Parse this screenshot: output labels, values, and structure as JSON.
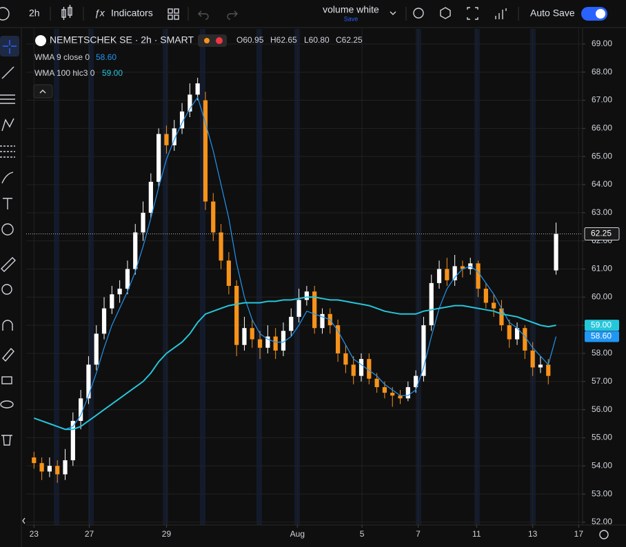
{
  "toolbar": {
    "interval": "2h",
    "indicators": "Indicators",
    "layout_name": "volume white",
    "layout_status": "Save",
    "auto_save": "Auto Save"
  },
  "chart_data": {
    "type": "candlestick",
    "title": "NEMETSCHEK SE · 2h · SMART",
    "ohlc_labels": [
      "O60.95",
      "H62.65",
      "L60.80",
      "C62.25"
    ],
    "open": [
      54.3,
      54.1,
      53.8,
      54.0,
      53.7,
      54.2,
      55.6,
      56.4,
      57.6,
      58.7,
      59.6,
      60.1,
      60.3,
      61.0,
      62.3,
      63.0,
      64.1,
      65.8,
      65.4,
      66.0,
      66.6,
      67.2,
      67.0,
      63.4,
      62.3,
      61.3,
      60.4,
      58.3,
      58.9,
      58.5,
      58.2,
      58.6,
      58.1,
      58.8,
      59.3,
      59.9,
      60.2,
      58.9,
      59.4,
      59.0,
      58.0,
      57.6,
      57.2,
      57.8,
      57.1,
      56.8,
      56.6,
      56.5,
      56.4,
      56.8,
      57.2,
      59.0,
      60.5,
      61.0,
      60.6,
      61.1,
      61.0,
      61.2,
      60.3,
      59.8,
      59.6,
      59.0,
      58.5,
      58.9,
      58.1,
      57.5,
      57.6,
      60.95
    ],
    "high": [
      54.5,
      54.3,
      54.3,
      54.2,
      54.6,
      55.9,
      56.7,
      57.9,
      59.0,
      60.0,
      60.4,
      60.6,
      61.3,
      62.6,
      63.4,
      64.4,
      66.0,
      66.1,
      66.3,
      66.9,
      67.6,
      67.8,
      67.3,
      63.7,
      62.6,
      61.6,
      60.6,
      59.3,
      59.2,
      58.8,
      59.0,
      58.9,
      59.1,
      59.6,
      60.3,
      60.4,
      60.4,
      59.6,
      59.6,
      59.2,
      58.3,
      57.9,
      58.0,
      58.0,
      57.3,
      57.0,
      56.8,
      56.7,
      57.0,
      57.4,
      59.3,
      60.8,
      61.3,
      61.4,
      61.5,
      61.3,
      61.4,
      61.3,
      60.5,
      60.1,
      59.9,
      59.2,
      59.1,
      59.0,
      58.4,
      57.9,
      57.8,
      62.65
    ],
    "low": [
      53.9,
      53.5,
      53.6,
      53.4,
      53.5,
      54.0,
      55.3,
      56.2,
      57.4,
      58.5,
      59.4,
      59.8,
      60.1,
      60.8,
      62.0,
      62.8,
      63.9,
      65.1,
      65.2,
      65.8,
      66.4,
      67.0,
      63.1,
      62.0,
      61.0,
      60.1,
      57.9,
      58.1,
      58.2,
      57.8,
      58.0,
      57.8,
      57.9,
      58.6,
      59.1,
      59.7,
      58.7,
      58.7,
      58.7,
      57.7,
      57.3,
      56.9,
      57.0,
      56.9,
      56.6,
      56.4,
      56.1,
      56.2,
      56.3,
      56.6,
      57.0,
      58.8,
      60.3,
      60.4,
      60.4,
      60.7,
      60.8,
      60.0,
      59.6,
      59.3,
      58.8,
      58.2,
      58.3,
      57.8,
      57.2,
      57.3,
      56.9,
      60.8
    ],
    "close": [
      54.1,
      53.8,
      54.0,
      53.7,
      54.2,
      55.6,
      56.4,
      57.6,
      58.7,
      59.6,
      60.1,
      60.3,
      61.0,
      62.3,
      63.0,
      64.1,
      65.8,
      65.4,
      66.0,
      66.6,
      67.2,
      67.6,
      63.4,
      62.3,
      61.3,
      60.4,
      58.3,
      58.9,
      58.5,
      58.2,
      58.6,
      58.1,
      58.8,
      59.3,
      59.9,
      60.2,
      58.9,
      59.4,
      59.0,
      58.0,
      57.6,
      57.2,
      57.8,
      57.1,
      56.8,
      56.6,
      56.5,
      56.4,
      56.8,
      57.2,
      59.0,
      60.5,
      61.0,
      60.6,
      61.1,
      61.0,
      61.2,
      60.3,
      59.8,
      59.6,
      59.0,
      58.5,
      58.9,
      58.1,
      57.5,
      57.6,
      57.2,
      62.25
    ],
    "up_color": "#ffffff",
    "down_color": "#f7931a",
    "series": [
      {
        "name": "WMA 9 close 0",
        "color": "#2196f3",
        "value_label": "58.60",
        "values": [
          null,
          null,
          null,
          null,
          55.3,
          55.4,
          55.8,
          56.5,
          57.3,
          58.2,
          59.0,
          59.6,
          60.2,
          60.9,
          61.8,
          62.8,
          63.9,
          64.9,
          65.6,
          66.2,
          66.7,
          67.1,
          66.2,
          65.2,
          64.0,
          62.8,
          61.2,
          60.0,
          59.2,
          58.7,
          58.5,
          58.4,
          58.4,
          58.6,
          59.0,
          59.5,
          59.4,
          59.3,
          59.2,
          58.8,
          58.3,
          57.8,
          57.6,
          57.4,
          57.2,
          56.9,
          56.7,
          56.5,
          56.5,
          56.7,
          57.5,
          58.6,
          59.6,
          60.3,
          60.7,
          61.0,
          61.1,
          60.9,
          60.5,
          60.1,
          59.6,
          59.1,
          58.9,
          58.6,
          58.2,
          57.9,
          57.6,
          58.6
        ]
      },
      {
        "name": "WMA 100 hlc3 0",
        "color": "#26c6da",
        "value_label": "59.00",
        "values": [
          55.7,
          55.6,
          55.5,
          55.4,
          55.3,
          55.3,
          55.4,
          55.6,
          55.8,
          56.0,
          56.2,
          56.4,
          56.6,
          56.8,
          57.0,
          57.3,
          57.7,
          58.0,
          58.2,
          58.4,
          58.7,
          59.1,
          59.4,
          59.5,
          59.6,
          59.7,
          59.75,
          59.8,
          59.8,
          59.8,
          59.85,
          59.85,
          59.9,
          59.9,
          59.95,
          60.0,
          60.0,
          59.95,
          59.9,
          59.9,
          59.85,
          59.8,
          59.75,
          59.7,
          59.6,
          59.5,
          59.45,
          59.4,
          59.4,
          59.4,
          59.5,
          59.55,
          59.6,
          59.65,
          59.7,
          59.7,
          59.65,
          59.6,
          59.55,
          59.5,
          59.4,
          59.35,
          59.3,
          59.2,
          59.1,
          59.0,
          58.95,
          59.0
        ]
      }
    ],
    "last_price_label": "62.25",
    "xlim": [
      -1,
      70.4
    ],
    "xticks": [
      {
        "value": 0,
        "label": "23"
      },
      {
        "value": 7.1,
        "label": "27"
      },
      {
        "value": 17,
        "label": "29"
      },
      {
        "value": 33.8,
        "label": "Aug"
      },
      {
        "value": 42.1,
        "label": "5"
      },
      {
        "value": 49.3,
        "label": "7"
      },
      {
        "value": 56.8,
        "label": "11"
      },
      {
        "value": 64,
        "label": "13"
      },
      {
        "value": 69.9,
        "label": "17"
      }
    ],
    "ylim": [
      51.9,
      69.56
    ],
    "yticks": [
      {
        "value": 52,
        "label": "52.00"
      },
      {
        "value": 53,
        "label": "53.00"
      },
      {
        "value": 54,
        "label": "54.00"
      },
      {
        "value": 55,
        "label": "55.00"
      },
      {
        "value": 56,
        "label": "56.00"
      },
      {
        "value": 57,
        "label": "57.00"
      },
      {
        "value": 58,
        "label": "58.00"
      },
      {
        "value": 59,
        "label": "59.00"
      },
      {
        "value": 60,
        "label": "60.00"
      },
      {
        "value": 61,
        "label": "61.00"
      },
      {
        "value": 62,
        "label": "62.00"
      },
      {
        "value": 63,
        "label": "63.00"
      },
      {
        "value": 64,
        "label": "64.00"
      },
      {
        "value": 65,
        "label": "65.00"
      },
      {
        "value": 66,
        "label": "66.00"
      },
      {
        "value": 67,
        "label": "67.00"
      },
      {
        "value": 68,
        "label": "68.00"
      },
      {
        "value": 69,
        "label": "69.00"
      }
    ],
    "grid": true
  }
}
